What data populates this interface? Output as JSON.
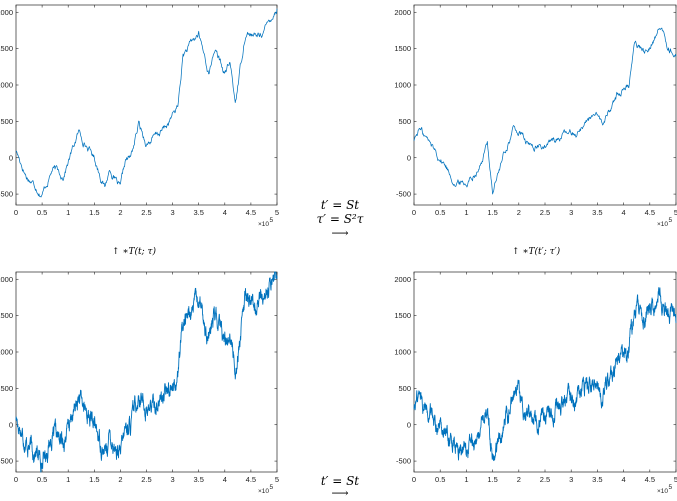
{
  "chart_data": [
    {
      "id": "top-left",
      "type": "line",
      "density": "sparse",
      "color": "#0072BD",
      "xlim": [
        0,
        500000
      ],
      "ylim": [
        -650,
        2100
      ],
      "x_ticks": [
        0,
        0.5,
        1,
        1.5,
        2,
        2.5,
        3,
        3.5,
        4,
        4.5,
        5
      ],
      "x_tick_labels": [
        "0",
        "0.5",
        "1",
        "1.5",
        "2",
        "2.5",
        "3",
        "3.5",
        "4",
        "4.5",
        "5"
      ],
      "y_ticks": [
        -500,
        0,
        500,
        1000,
        1500,
        2000
      ],
      "y_tick_labels": [
        "-500",
        "0",
        "500",
        "1000",
        "1500",
        "2000"
      ],
      "x_exponent_label": "×10",
      "x_exponent_power": "5",
      "series": [
        {
          "x": [
            0,
            20000,
            40000,
            50000,
            70000,
            90000,
            110000,
            120000,
            150000,
            170000,
            180000,
            200000,
            210000,
            220000,
            235000,
            250000,
            270000,
            290000,
            310000,
            320000,
            335000,
            350000,
            370000,
            380000,
            400000,
            410000,
            420000,
            440000,
            460000,
            480000,
            490000,
            500000
          ],
          "values": [
            100,
            -250,
            -400,
            -500,
            -150,
            -250,
            150,
            350,
            0,
            -400,
            -150,
            -450,
            -50,
            0,
            450,
            200,
            300,
            450,
            700,
            1400,
            1550,
            1700,
            1150,
            1500,
            1150,
            1300,
            750,
            1750,
            1650,
            1800,
            1950,
            2050
          ]
        }
      ]
    },
    {
      "id": "top-right",
      "type": "line",
      "density": "sparse",
      "color": "#0072BD",
      "xlim": [
        0,
        500000
      ],
      "ylim": [
        -650,
        2100
      ],
      "x_ticks": [
        0,
        0.5,
        1,
        1.5,
        2,
        2.5,
        3,
        3.5,
        4,
        4.5,
        5
      ],
      "x_tick_labels": [
        "0",
        "0.5",
        "1",
        "1.5",
        "2",
        "2.5",
        "3",
        "3.5",
        "4",
        "4.5",
        "5"
      ],
      "y_ticks": [
        -500,
        0,
        500,
        1000,
        1500,
        2000
      ],
      "y_tick_labels": [
        "-500",
        "0",
        "500",
        "1000",
        "1500",
        "2000"
      ],
      "x_exponent_label": "×10",
      "x_exponent_power": "5",
      "series": [
        {
          "x": [
            0,
            10000,
            30000,
            60000,
            80000,
            100000,
            130000,
            140000,
            150000,
            170000,
            190000,
            200000,
            220000,
            250000,
            280000,
            310000,
            340000,
            360000,
            380000,
            390000,
            410000,
            420000,
            440000,
            470000,
            480000,
            500000
          ],
          "values": [
            250,
            400,
            200,
            -100,
            -350,
            -350,
            -50,
            200,
            -450,
            0,
            400,
            350,
            150,
            150,
            300,
            350,
            600,
            450,
            750,
            900,
            1000,
            1600,
            1450,
            1800,
            1600,
            1400
          ]
        }
      ]
    },
    {
      "id": "bottom-left",
      "type": "line",
      "density": "dense",
      "color": "#0072BD",
      "xlim": [
        0,
        500000
      ],
      "ylim": [
        -650,
        2100
      ],
      "x_ticks": [
        0,
        0.5,
        1,
        1.5,
        2,
        2.5,
        3,
        3.5,
        4,
        4.5,
        5
      ],
      "x_tick_labels": [
        "0",
        "0.5",
        "1",
        "1.5",
        "2",
        "2.5",
        "3",
        "3.5",
        "4",
        "4.5",
        "5"
      ],
      "y_ticks": [
        -500,
        0,
        500,
        1000,
        1500,
        2000
      ],
      "y_tick_labels": [
        "-500",
        "0",
        "500",
        "1000",
        "1500",
        "2000"
      ],
      "x_exponent_label": "×10",
      "x_exponent_power": "5",
      "series": [
        {
          "x": [
            0,
            20000,
            40000,
            50000,
            70000,
            90000,
            110000,
            120000,
            150000,
            170000,
            180000,
            200000,
            210000,
            220000,
            235000,
            250000,
            270000,
            290000,
            310000,
            320000,
            335000,
            350000,
            370000,
            380000,
            400000,
            410000,
            420000,
            440000,
            460000,
            480000,
            490000,
            500000
          ],
          "values": [
            100,
            -250,
            -400,
            -500,
            -150,
            -250,
            150,
            350,
            0,
            -400,
            -150,
            -450,
            -50,
            0,
            450,
            200,
            300,
            450,
            700,
            1400,
            1550,
            1700,
            1150,
            1500,
            1150,
            1300,
            750,
            1750,
            1650,
            1800,
            1950,
            2050
          ]
        }
      ]
    },
    {
      "id": "bottom-right",
      "type": "line",
      "density": "dense",
      "color": "#0072BD",
      "xlim": [
        0,
        500000
      ],
      "ylim": [
        -650,
        2100
      ],
      "x_ticks": [
        0,
        0.5,
        1,
        1.5,
        2,
        2.5,
        3,
        3.5,
        4,
        4.5,
        5
      ],
      "x_tick_labels": [
        "0",
        "0.5",
        "1",
        "1.5",
        "2",
        "2.5",
        "3",
        "3.5",
        "4",
        "4.5",
        "5"
      ],
      "y_ticks": [
        -500,
        0,
        500,
        1000,
        1500,
        2000
      ],
      "y_tick_labels": [
        "-500",
        "0",
        "500",
        "1000",
        "1500",
        "2000"
      ],
      "x_exponent_label": "×10",
      "x_exponent_power": "5",
      "series": [
        {
          "x": [
            0,
            10000,
            30000,
            60000,
            80000,
            100000,
            130000,
            140000,
            150000,
            170000,
            190000,
            200000,
            220000,
            250000,
            280000,
            310000,
            340000,
            360000,
            380000,
            390000,
            410000,
            420000,
            440000,
            470000,
            480000,
            500000
          ],
          "values": [
            250,
            400,
            200,
            -100,
            -350,
            -350,
            -50,
            200,
            -450,
            0,
            400,
            350,
            150,
            150,
            300,
            350,
            600,
            450,
            750,
            900,
            1000,
            1600,
            1450,
            1800,
            1600,
            1400
          ]
        }
      ]
    }
  ],
  "annotations": {
    "middle_top_line1": "t′ = St",
    "middle_top_line2": "τ′ = S²τ",
    "middle_top_arrow": "⟶",
    "left_vertical": "↑ ∗T(t; τ)",
    "right_vertical": "↑ ∗T(t′; τ′)",
    "bottom_line1": "t′ = St",
    "bottom_arrow": "⟶"
  }
}
